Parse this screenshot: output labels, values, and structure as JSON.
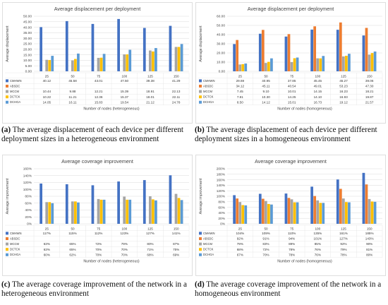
{
  "colors": {
    "CMHWN": "#4472c4",
    "ABSDC": "#ed7d31",
    "MCCM": "#a5a5a5",
    "DCTCK": "#ffc000",
    "DCHGA": "#5b9bd5"
  },
  "captions": [
    {
      "label": "(a)",
      "text": "The average displacement of each device per different deployment sizes in a heterogeneous environment"
    },
    {
      "label": "(b)",
      "text": "The average displacement of each device per different deployment sizes in a homogeneous environment"
    },
    {
      "label": "(c)",
      "text": "The average coverage improvement of the network in a heterogeneous environment"
    },
    {
      "label": "(d)",
      "text": "The average coverage improvement of the network in a homogeneous environment"
    }
  ],
  "chart_data": [
    {
      "type": "bar",
      "title": "Average displacement per deployment",
      "xlabel": "Number of nodes (heterogeneous)",
      "ylabel": "Average displacement",
      "ylim": [
        0,
        50
      ],
      "yticks": [
        "0.00",
        "5.00",
        "10.00",
        "15.00",
        "20.00",
        "25.00",
        "30.00",
        "35.00",
        "40.00",
        "45.00",
        "50.00"
      ],
      "grid": true,
      "legend": "table-below",
      "categories": [
        "25",
        "50",
        "75",
        "100",
        "125",
        "150"
      ],
      "series": [
        {
          "name": "CMHWN",
          "values": [
            40.12,
            45.58,
            43.01,
            47.5,
            39.38,
            41.29
          ],
          "labels": [
            "40.12",
            "45.58",
            "43.01",
            "47.50",
            "39.38",
            "41.29"
          ]
        },
        {
          "name": "ABSDC",
          "values": [
            0,
            0,
            0,
            0,
            0,
            0
          ],
          "labels": [
            "",
            "",
            "",
            "",
            "",
            ""
          ]
        },
        {
          "name": "MCCM",
          "values": [
            10.44,
            9.88,
            12.21,
            15.39,
            18.91,
            22.13
          ],
          "labels": [
            "10.44",
            "9.88",
            "12.21",
            "15.39",
            "18.91",
            "22.13"
          ]
        },
        {
          "name": "DCTCK",
          "values": [
            10.22,
            11.21,
            12.36,
            15.37,
            18.01,
            22.11
          ],
          "labels": [
            "10.22",
            "11.21",
            "12.36",
            "15.37",
            "18.01",
            "22.11"
          ]
        },
        {
          "name": "DCHGA",
          "values": [
            14.05,
            16.11,
            15.83,
            19.54,
            21.12,
            24.78
          ],
          "labels": [
            "14.05",
            "16.11",
            "15.83",
            "19.54",
            "21.12",
            "24.78"
          ]
        }
      ]
    },
    {
      "type": "bar",
      "title": "Average displacement per deployment",
      "xlabel": "Number of nodes (homogeneous)",
      "ylabel": "Average displacement",
      "ylim": [
        0,
        60
      ],
      "yticks": [
        "0.00",
        "10.00",
        "20.00",
        "30.00",
        "40.00",
        "50.00",
        "60.00"
      ],
      "grid": true,
      "legend": "table-below",
      "categories": [
        "25",
        "50",
        "75",
        "100",
        "125",
        "150"
      ],
      "series": [
        {
          "name": "CMHWN",
          "values": [
            29.69,
            40.95,
            37.85,
            45.45,
            45.27,
            39.06
          ],
          "labels": [
            "29.69",
            "40.95",
            "37.85",
            "45.45",
            "45.27",
            "39.06"
          ]
        },
        {
          "name": "ABSDC",
          "values": [
            34.12,
            45.11,
            40.54,
            49.01,
            53.23,
            47.3
          ],
          "labels": [
            "34.12",
            "45.11",
            "40.54",
            "49.01",
            "53.23",
            "47.30"
          ]
        },
        {
          "name": "MCCM",
          "values": [
            7.45,
            9.1,
            10.01,
            14.15,
            16.23,
            18.21
          ],
          "labels": [
            "7.45",
            "9.10",
            "10.01",
            "14.15",
            "16.23",
            "18.21"
          ]
        },
        {
          "name": "DCTCK",
          "values": [
            7.81,
            10.3,
            14.25,
            14.1,
            16.93,
            19.87
          ],
          "labels": [
            "7.81",
            "10.30",
            "14.25",
            "14.10",
            "16.93",
            "19.87"
          ]
        },
        {
          "name": "DCHGA",
          "values": [
            8.5,
            14.12,
            15.01,
            16.73,
            19.12,
            21.57
          ],
          "labels": [
            "8.50",
            "14.12",
            "15.01",
            "16.73",
            "19.12",
            "21.57"
          ]
        }
      ]
    },
    {
      "type": "bar",
      "title": "Average coverage improvement",
      "xlabel": "Number of nodes (heterogeneous)",
      "ylabel": "Average improvement",
      "ylim": [
        0,
        160
      ],
      "yticks": [
        "0%",
        "20%",
        "40%",
        "60%",
        "80%",
        "100%",
        "120%",
        "140%",
        "160%"
      ],
      "grid": true,
      "legend": "table-below",
      "categories": [
        "25",
        "50",
        "75",
        "100",
        "125",
        "150"
      ],
      "series": [
        {
          "name": "CMHWN",
          "values": [
            117,
            115,
            112,
            123,
            127,
            141
          ],
          "labels": [
            "117%",
            "115%",
            "112%",
            "123%",
            "127%",
            "141%"
          ]
        },
        {
          "name": "ABSDC",
          "values": [
            0,
            0,
            0,
            0,
            0,
            0
          ],
          "labels": [
            "",
            "",
            "",
            "",
            "",
            ""
          ]
        },
        {
          "name": "MCCM",
          "values": [
            63,
            65,
            72,
            79,
            80,
            87
          ],
          "labels": [
            "63%",
            "65%",
            "72%",
            "79%",
            "80%",
            "87%"
          ]
        },
        {
          "name": "DCTCK",
          "values": [
            63,
            65,
            70,
            70,
            71,
            75
          ],
          "labels": [
            "63%",
            "65%",
            "70%",
            "70%",
            "71%",
            "75%"
          ]
        },
        {
          "name": "DCHGA",
          "values": [
            60,
            62,
            70,
            70,
            68,
            69
          ],
          "labels": [
            "60%",
            "62%",
            "70%",
            "70%",
            "68%",
            "69%"
          ]
        }
      ]
    },
    {
      "type": "bar",
      "title": "Average coverage improvement",
      "xlabel": "Number of nodes (homogeneous)",
      "ylabel": "Average improvement",
      "ylim": [
        0,
        200
      ],
      "yticks": [
        "0%",
        "20%",
        "40%",
        "60%",
        "80%",
        "100%",
        "120%",
        "140%",
        "160%",
        "180%",
        "200%"
      ],
      "grid": true,
      "legend": "table-below",
      "categories": [
        "25",
        "50",
        "75",
        "100",
        "125",
        "150"
      ],
      "series": [
        {
          "name": "CMHWN",
          "values": [
            104,
            109,
            110,
            135,
            161,
            185
          ],
          "labels": [
            "104%",
            "109%",
            "110%",
            "135%",
            "161%",
            "185%"
          ]
        },
        {
          "name": "ABSDC",
          "values": [
            92,
            91,
            94,
            101,
            127,
            143
          ],
          "labels": [
            "92%",
            "91%",
            "94%",
            "101%",
            "127%",
            "143%"
          ]
        },
        {
          "name": "MCCM",
          "values": [
            79,
            83,
            89,
            85,
            92,
            90
          ],
          "labels": [
            "79%",
            "83%",
            "89%",
            "85%",
            "92%",
            "90%"
          ]
        },
        {
          "name": "DCTCK",
          "values": [
            68,
            72,
            78,
            76,
            79,
            81
          ],
          "labels": [
            "68%",
            "72%",
            "78%",
            "76%",
            "79%",
            "81%"
          ]
        },
        {
          "name": "DCHGA",
          "values": [
            67,
            70,
            78,
            76,
            78,
            80
          ],
          "labels": [
            "67%",
            "70%",
            "78%",
            "76%",
            "78%",
            "80%"
          ]
        }
      ]
    }
  ]
}
